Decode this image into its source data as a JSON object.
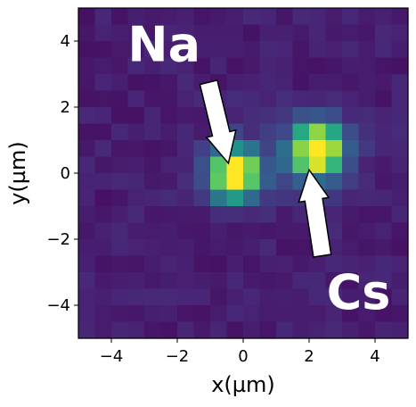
{
  "chart_data": {
    "type": "heatmap",
    "title": "",
    "xlabel": "x(µm)",
    "ylabel": "y(µm)",
    "xlim": [
      -5,
      5
    ],
    "ylim": [
      -5,
      5
    ],
    "grid": false,
    "colormap": "viridis",
    "x_ticks": [
      -4,
      -2,
      0,
      2,
      4
    ],
    "y_ticks": [
      -4,
      -2,
      0,
      2,
      4
    ],
    "x_tick_labels": [
      "−4",
      "−2",
      "0",
      "2",
      "4"
    ],
    "y_tick_labels": [
      "−4",
      "−2",
      "0",
      "2",
      "4"
    ],
    "background_level": 0.06,
    "spots": [
      {
        "x": -0.25,
        "y": 0.0,
        "sigma": 0.55,
        "peak": 1.0
      },
      {
        "x": 2.25,
        "y": 0.7,
        "sigma": 0.6,
        "peak": 1.0
      }
    ],
    "annotations": [
      {
        "text": "Na",
        "label_x": -2.4,
        "label_y": 3.9,
        "arrow_from": [
          -1.05,
          2.75
        ],
        "arrow_to": [
          -0.45,
          0.3
        ]
      },
      {
        "text": "Cs",
        "label_x": 3.5,
        "label_y": -3.6,
        "arrow_from": [
          2.4,
          -2.5
        ],
        "arrow_to": [
          2.0,
          0.1
        ]
      }
    ],
    "colors": {
      "annotation": "#ffffff",
      "arrow_fill": "#ffffff",
      "arrow_edge": "#000000"
    }
  }
}
